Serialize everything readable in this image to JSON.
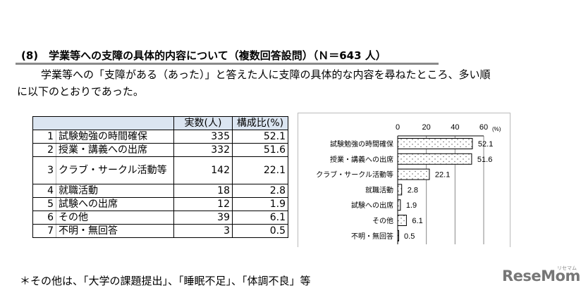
{
  "title": "(8)　学業等への支障の具体的内容について（複数回答設問）（Ｎ＝643 人）",
  "paragraph": [
    "学業等への「支障がある（あった）」と答えた人に支障の具体的な内容を尋ねたところ、多い順",
    "に以下のとおりであった。"
  ],
  "table": {
    "headers": [
      "",
      "実数(人)",
      "構成比(%)"
    ],
    "rows": [
      {
        "no": "1",
        "label": "試験勉強の時間確保",
        "count": "335",
        "pct": "52.1"
      },
      {
        "no": "2",
        "label": "授業・講義への出席",
        "count": "332",
        "pct": "51.6"
      },
      {
        "no": "3",
        "label": "クラブ・サークル活動等",
        "count": "142",
        "pct": "22.1"
      },
      {
        "no": "4",
        "label": "就職活動",
        "count": "18",
        "pct": "2.8"
      },
      {
        "no": "5",
        "label": "試験への出席",
        "count": "12",
        "pct": "1.9"
      },
      {
        "no": "6",
        "label": "その他",
        "count": "39",
        "pct": "6.1"
      },
      {
        "no": "7",
        "label": "不明・無回答",
        "count": "3",
        "pct": "0.5"
      }
    ]
  },
  "chart_data": {
    "type": "bar",
    "orientation": "horizontal",
    "categories": [
      "試験勉強の時間確保",
      "授業・講義への出席",
      "クラブ・サークル活動等",
      "就職活動",
      "試験への出席",
      "その他",
      "不明・無回答"
    ],
    "values": [
      52.1,
      51.6,
      22.1,
      2.8,
      1.9,
      6.1,
      0.5
    ],
    "data_labels": [
      "52.1",
      "51.6",
      "22.1",
      "2.8",
      "1.9",
      "6.1",
      "0.5"
    ],
    "xlim": [
      0,
      60
    ],
    "xticks": [
      "0",
      "20",
      "40",
      "60"
    ],
    "unit": "(%)",
    "axis_position": "top",
    "grid": true,
    "bar_fill": "dotted white"
  },
  "footnote": "＊その他は、「大学の課題提出」、「睡眠不足」、「体調不良」等",
  "logo": "ReseMom",
  "logo_sub": "リセマム"
}
